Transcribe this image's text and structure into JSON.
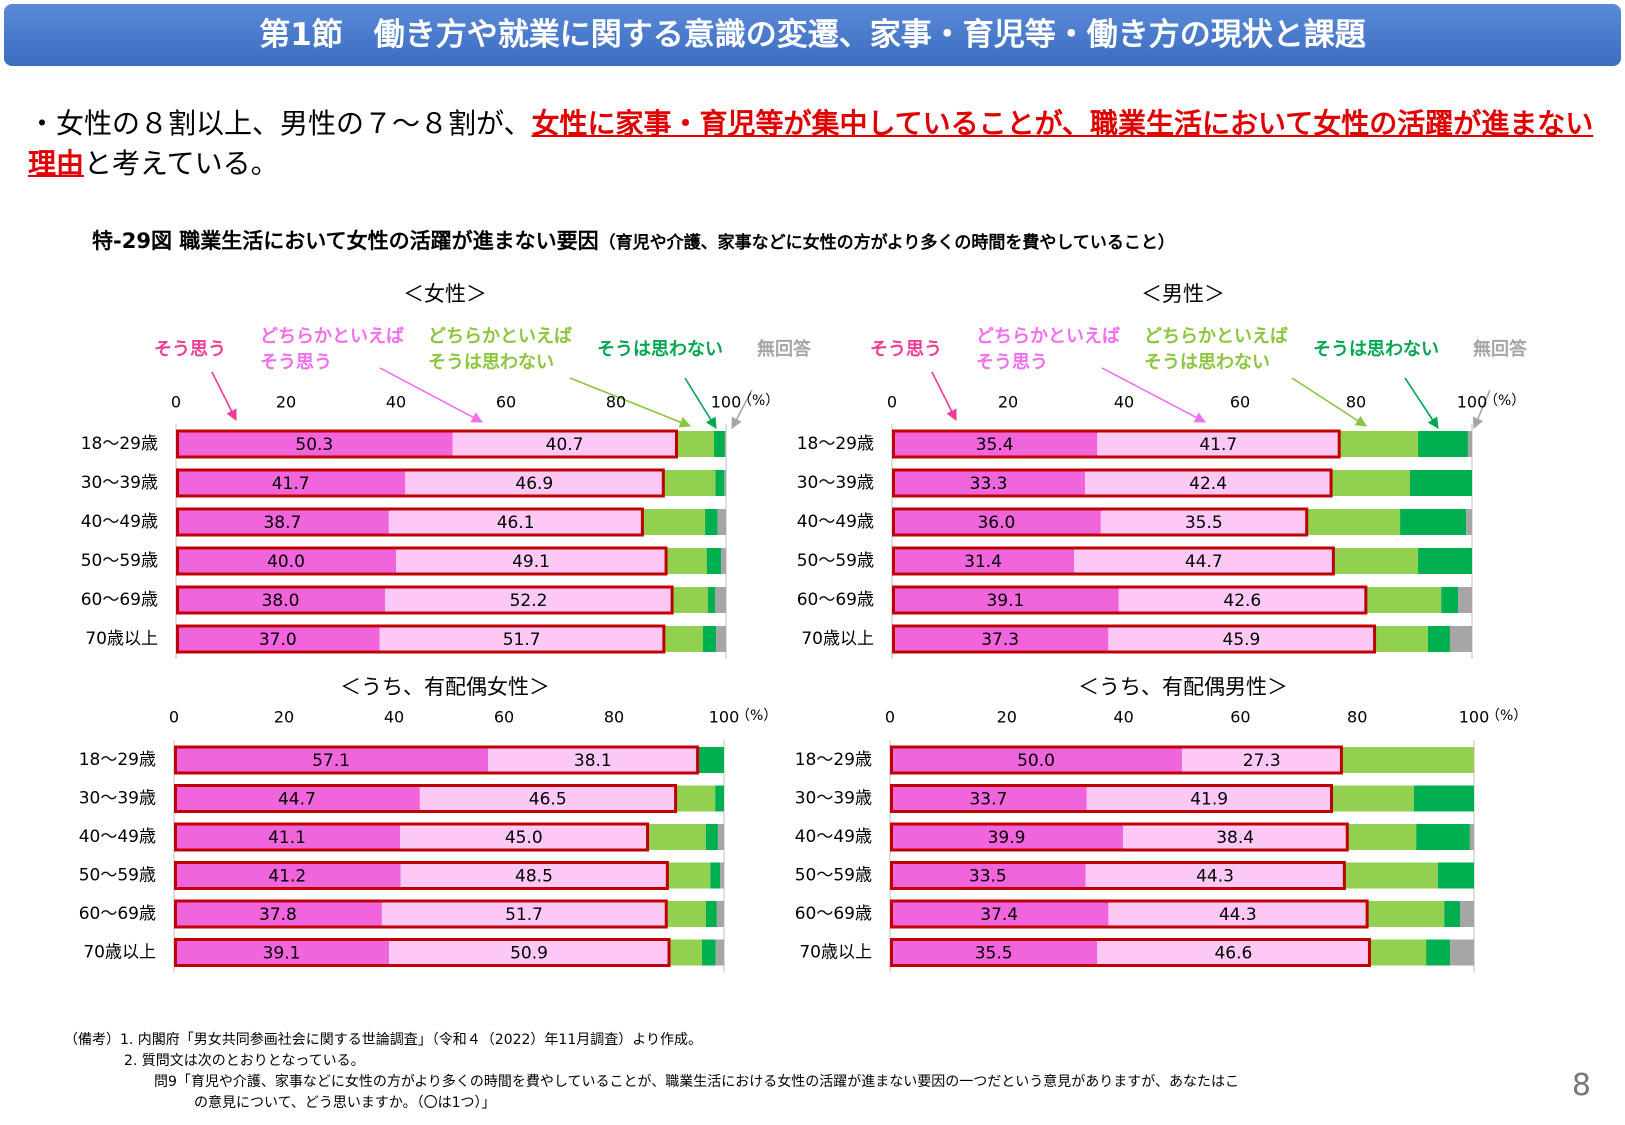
{
  "header": {
    "title": "第1節　働き方や就業に関する意識の変遷、家事・育児等・働き方の現状と課題"
  },
  "bullet": {
    "prefix": "・女性の８割以上、男性の７～８割が、",
    "highlight": "女性に家事・育児等が集中していることが、職業生活において女性の活躍が進まない理由",
    "suffix": "と考えている。"
  },
  "figure": {
    "title": "特-29図 職業生活において女性の活躍が進まない要因",
    "subtitle": "（育児や介護、家事などに女性の方がより多くの時間を費やしていること）"
  },
  "notes": [
    "（備考）1. 内閣府「男女共同参画社会に関する世論調査」（令和４（2022）年11月調査）より作成。",
    "2. 質問文は次のとおりとなっている。",
    "問9「育児や介護、家事などに女性の方がより多くの時間を費やしていることが、職業生活における女性の活躍が進まない要因の一つだという意見がありますが、あなたはこ",
    "の意見について、どう思いますか。（〇は1つ）」"
  ],
  "page_number": "8",
  "chart_data": [
    {
      "type": "stacked-bar-h",
      "title": "＜女性＞",
      "unit": "（%）",
      "legend": true,
      "highlight_color": "#c00000",
      "categories": [
        "18～29歳",
        "30～39歳",
        "40～49歳",
        "50～59歳",
        "60～69歳",
        "70歳以上"
      ],
      "xlim": [
        0,
        100
      ],
      "xticks": [
        0,
        20,
        40,
        60,
        80,
        100
      ],
      "series": [
        {
          "name": "そう思う",
          "color": "#f064dc",
          "legend_color": "#ee3d96",
          "values": [
            50.3,
            41.7,
            38.7,
            40.0,
            38.0,
            37.0
          ],
          "value_labels": [
            "50.3",
            "41.7",
            "38.7",
            "40.0",
            "38.0",
            "37.0"
          ]
        },
        {
          "name": "どちらかといえば\nそう思う",
          "color": "#fcc8f6",
          "legend_color": "#f26ff0",
          "values": [
            40.7,
            46.9,
            46.1,
            49.1,
            52.2,
            51.7
          ],
          "value_labels": [
            "40.7",
            "46.9",
            "46.1",
            "49.1",
            "52.2",
            "51.7"
          ]
        },
        {
          "name": "どちらかといえば\nそうは思わない",
          "color": "#92d050",
          "legend_color": "#8cc63f",
          "values": [
            6.8,
            9.5,
            11.4,
            7.4,
            6.5,
            7.1
          ]
        },
        {
          "name": "そうは思わない",
          "color": "#00b050",
          "legend_color": "#00a650",
          "values": [
            2.0,
            1.6,
            2.3,
            2.6,
            1.3,
            2.4
          ]
        },
        {
          "name": "無回答",
          "color": "#a6a6a6",
          "legend_color": "#a6a6a6",
          "values": [
            0.2,
            0.3,
            1.5,
            0.9,
            2.0,
            1.8
          ]
        }
      ]
    },
    {
      "type": "stacked-bar-h",
      "title": "＜男性＞",
      "unit": "（%）",
      "legend": true,
      "highlight_color": "#c00000",
      "categories": [
        "18～29歳",
        "30～39歳",
        "40～49歳",
        "50～59歳",
        "60～69歳",
        "70歳以上"
      ],
      "xlim": [
        0,
        100
      ],
      "xticks": [
        0,
        20,
        40,
        60,
        80,
        100
      ],
      "series": [
        {
          "name": "そう思う",
          "color": "#f064dc",
          "legend_color": "#ee3d96",
          "values": [
            35.4,
            33.3,
            36.0,
            31.4,
            39.1,
            37.3
          ],
          "value_labels": [
            "35.4",
            "33.3",
            "36.0",
            "31.4",
            "39.1",
            "37.3"
          ]
        },
        {
          "name": "どちらかといえば\nそう思う",
          "color": "#fcc8f6",
          "legend_color": "#f26ff0",
          "values": [
            41.7,
            42.4,
            35.5,
            44.7,
            42.6,
            45.9
          ],
          "value_labels": [
            "41.7",
            "42.4",
            "35.5",
            "44.7",
            "42.6",
            "45.9"
          ]
        },
        {
          "name": "どちらかといえば\nそうは思わない",
          "color": "#92d050",
          "legend_color": "#8cc63f",
          "values": [
            13.6,
            13.6,
            16.1,
            14.6,
            13.0,
            9.2
          ]
        },
        {
          "name": "そうは思わない",
          "color": "#00b050",
          "legend_color": "#00a650",
          "values": [
            8.6,
            10.7,
            11.4,
            9.3,
            2.9,
            3.8
          ]
        },
        {
          "name": "無回答",
          "color": "#a6a6a6",
          "legend_color": "#a6a6a6",
          "values": [
            0.7,
            0,
            1.0,
            0,
            2.4,
            3.8
          ]
        }
      ]
    },
    {
      "type": "stacked-bar-h",
      "title": "＜うち、有配偶女性＞",
      "unit": "（%）",
      "legend": false,
      "highlight_color": "#c00000",
      "categories": [
        "18～29歳",
        "30～39歳",
        "40～49歳",
        "50～59歳",
        "60～69歳",
        "70歳以上"
      ],
      "xlim": [
        0,
        100
      ],
      "xticks": [
        0,
        20,
        40,
        60,
        80,
        100
      ],
      "series": [
        {
          "name": "そう思う",
          "color": "#f064dc",
          "values": [
            57.1,
            44.7,
            41.1,
            41.2,
            37.8,
            39.1
          ],
          "value_labels": [
            "57.1",
            "44.7",
            "41.1",
            "41.2",
            "37.8",
            "39.1"
          ]
        },
        {
          "name": "どちらかといえば\nそう思う",
          "color": "#fcc8f6",
          "values": [
            38.1,
            46.5,
            45.0,
            48.5,
            51.7,
            50.9
          ],
          "value_labels": [
            "38.1",
            "46.5",
            "45.0",
            "48.5",
            "51.7",
            "50.9"
          ]
        },
        {
          "name": "どちらかといえば\nそうは思わない",
          "color": "#92d050",
          "values": [
            0,
            7.2,
            10.6,
            7.8,
            7.2,
            6.0
          ]
        },
        {
          "name": "そうは思わない",
          "color": "#00b050",
          "values": [
            4.8,
            1.6,
            2.2,
            1.8,
            2.0,
            2.5
          ]
        },
        {
          "name": "無回答",
          "color": "#a6a6a6",
          "values": [
            0,
            0,
            1.1,
            0.7,
            1.3,
            1.5
          ]
        }
      ]
    },
    {
      "type": "stacked-bar-h",
      "title": "＜うち、有配偶男性＞",
      "unit": "（%）",
      "legend": false,
      "highlight_color": "#c00000",
      "categories": [
        "18～29歳",
        "30～39歳",
        "40～49歳",
        "50～59歳",
        "60～69歳",
        "70歳以上"
      ],
      "xlim": [
        0,
        100
      ],
      "xticks": [
        0,
        20,
        40,
        60,
        80,
        100
      ],
      "series": [
        {
          "name": "そう思う",
          "color": "#f064dc",
          "values": [
            50.0,
            33.7,
            39.9,
            33.5,
            37.4,
            35.5
          ],
          "value_labels": [
            "50.0",
            "33.7",
            "39.9",
            "33.5",
            "37.4",
            "35.5"
          ]
        },
        {
          "name": "どちらかといえば\nそう思う",
          "color": "#fcc8f6",
          "values": [
            27.3,
            41.9,
            38.4,
            44.3,
            44.3,
            46.6
          ],
          "value_labels": [
            "27.3",
            "41.9",
            "38.4",
            "44.3",
            "44.3",
            "46.6"
          ]
        },
        {
          "name": "どちらかといえば\nそうは思わない",
          "color": "#92d050",
          "values": [
            22.7,
            14.1,
            11.8,
            16.0,
            13.2,
            9.7
          ]
        },
        {
          "name": "そうは思わない",
          "color": "#00b050",
          "values": [
            0,
            10.3,
            9.2,
            6.2,
            2.7,
            4.1
          ]
        },
        {
          "name": "無回答",
          "color": "#a6a6a6",
          "values": [
            0,
            0,
            0.7,
            0,
            2.4,
            4.1
          ]
        }
      ]
    }
  ]
}
